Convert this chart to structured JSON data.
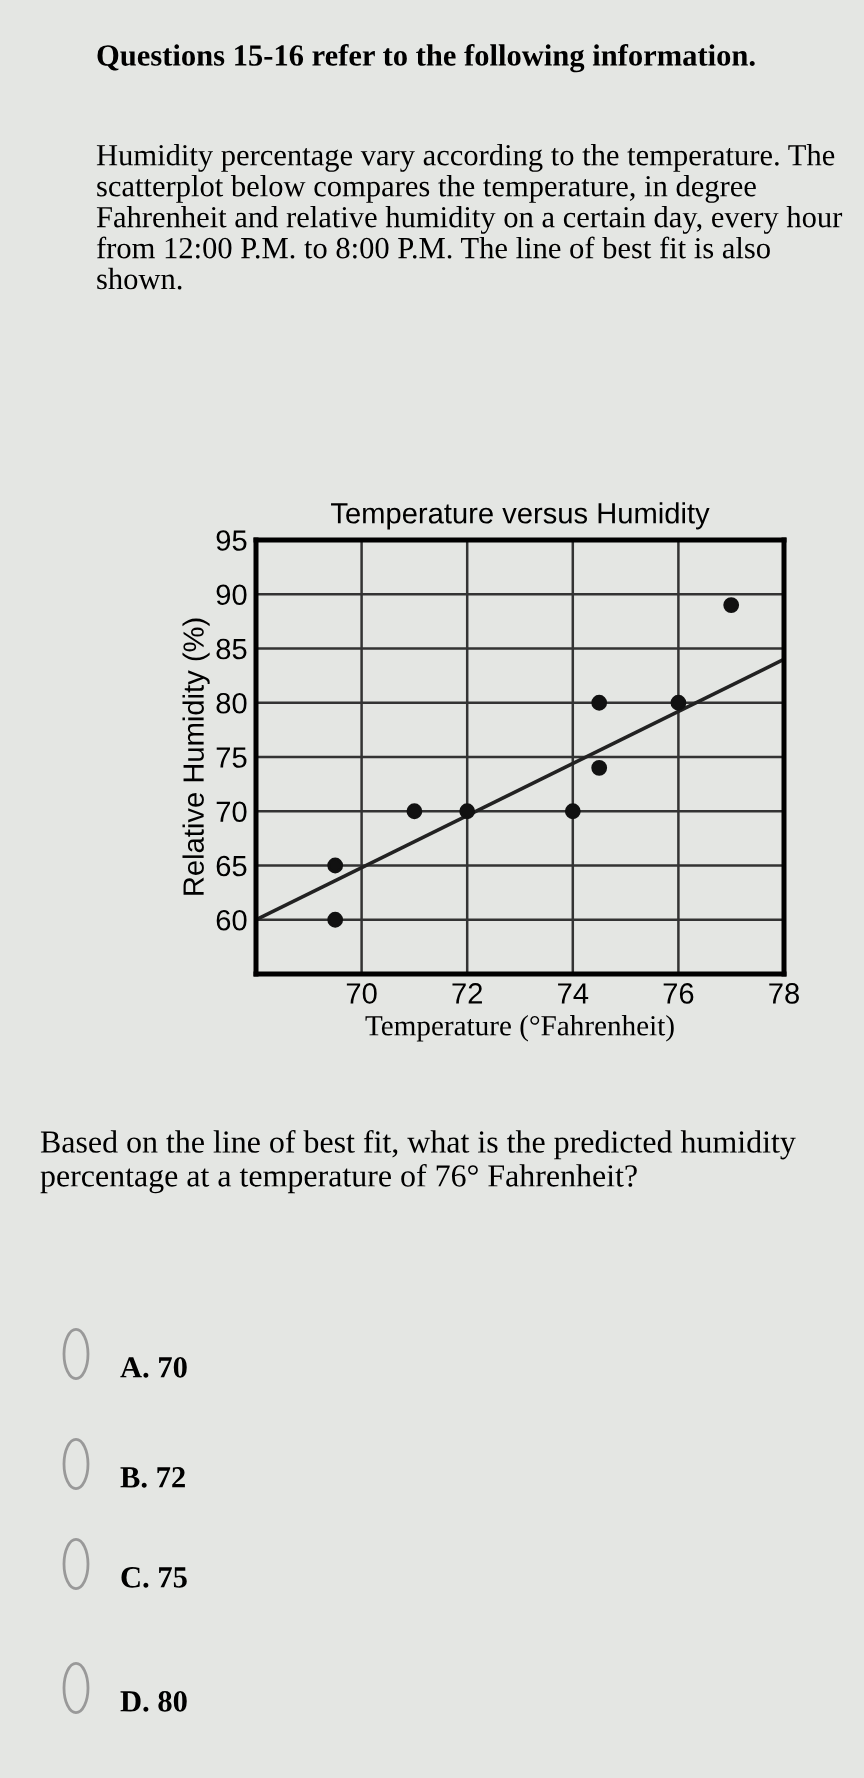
{
  "chart_data": {
    "type": "scatter",
    "title": "Temperature versus Humidity",
    "xlabel": "Temperature (°Fahrenheit)",
    "ylabel": "Relative Humidity (%)",
    "series": [
      {
        "color": "#111111",
        "marker": "circle",
        "x": [
          69.5,
          69.5,
          71,
          72,
          74,
          74.5,
          74.5,
          76,
          77
        ],
        "values": [
          60,
          65,
          70,
          70,
          70,
          80,
          74,
          80,
          89
        ]
      },
      {
        "type": "line",
        "color": "#222222",
        "x": [
          68,
          78
        ],
        "values": [
          60,
          84
        ]
      }
    ],
    "xlim": [
      68,
      78
    ],
    "ylim": [
      55,
      95
    ],
    "xticks": [
      70,
      72,
      74,
      76,
      78
    ],
    "yticks": [
      60,
      65,
      70,
      75,
      80,
      85,
      90,
      95
    ],
    "grid": true,
    "annotations": [
      "Questions 15-16 refer to the following information.",
      "Humidity percentage vary according to the temperature. The scatterplot below compares the temperature, in degree Fahrenheit and relative humidity on a certain day, every hour from 12:00 P.M. to 8:00 P.M. The line of best fit is also shown.",
      "Based on the line of best fit, what is the predicted humidity percentage at a temperature of 76° Fahrenheit?",
      "A. 70",
      "B. 72",
      "C. 75",
      "D. 80"
    ]
  }
}
